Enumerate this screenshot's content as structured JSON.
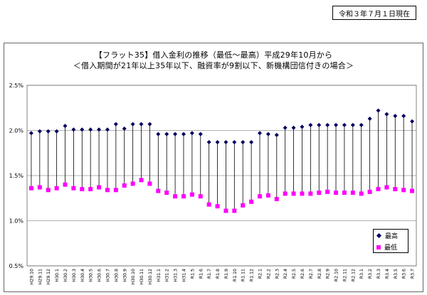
{
  "header": {
    "date_label": "令和３年７月１日現在"
  },
  "chart_data": {
    "type": "line",
    "title": "【フラット35】借入金利の推移（最低～最高）平成29年10月から",
    "subtitle": "＜借入期間が21年以上35年以下、融資率が9割以下、新機構団信付きの場合＞",
    "ylim": [
      0.005,
      0.025
    ],
    "yticks": [
      "0.5%",
      "1.0%",
      "1.5%",
      "2.0%",
      "2.5%"
    ],
    "grid": true,
    "legend_position": "bottom-right",
    "categories": [
      "H29.10",
      "H29.11",
      "H29.12",
      "H30.1",
      "H30.2",
      "H30.3",
      "H30.4",
      "H30.5",
      "H30.6",
      "H30.7",
      "H30.8",
      "H30.9",
      "H30.10",
      "H30.11",
      "H30.12",
      "H31.1",
      "H31.2",
      "H31.3",
      "H31.4",
      "R1.5",
      "R1.6",
      "R1.7",
      "R1.8",
      "R1.9",
      "R1.10",
      "R1.11",
      "R1.12",
      "R2.1",
      "R2.2",
      "R2.3",
      "R2.4",
      "R2.5",
      "R2.6",
      "R2.7",
      "R2.8",
      "R2.9",
      "R2.10",
      "R2.11",
      "R2.12",
      "R3.1",
      "R3.2",
      "R3.3",
      "R3.4",
      "R3.5",
      "R3.6",
      "R3.7"
    ],
    "series": [
      {
        "name": "最高",
        "color": "#000060",
        "values": [
          0.0197,
          0.0199,
          0.0199,
          0.0199,
          0.0205,
          0.0201,
          0.0201,
          0.0201,
          0.0201,
          0.0201,
          0.0207,
          0.0202,
          0.0207,
          0.0207,
          0.0207,
          0.0196,
          0.0196,
          0.0196,
          0.0196,
          0.0197,
          0.0196,
          0.0187,
          0.0187,
          0.0187,
          0.0187,
          0.0187,
          0.0187,
          0.0197,
          0.0196,
          0.0195,
          0.0203,
          0.0203,
          0.0204,
          0.0206,
          0.0206,
          0.0206,
          0.0206,
          0.0206,
          0.0206,
          0.0206,
          0.0213,
          0.0222,
          0.0218,
          0.0216,
          0.0216,
          0.021
        ]
      },
      {
        "name": "最低",
        "color": "#ff00ff",
        "values": [
          0.0136,
          0.0137,
          0.0134,
          0.0136,
          0.014,
          0.0136,
          0.0135,
          0.0135,
          0.0137,
          0.0134,
          0.0134,
          0.0139,
          0.0141,
          0.0145,
          0.0141,
          0.0133,
          0.0131,
          0.0127,
          0.0127,
          0.0129,
          0.0127,
          0.0118,
          0.0116,
          0.0111,
          0.0111,
          0.0117,
          0.0121,
          0.0127,
          0.0128,
          0.0124,
          0.013,
          0.013,
          0.013,
          0.013,
          0.0131,
          0.0132,
          0.0131,
          0.0131,
          0.0131,
          0.013,
          0.0132,
          0.0135,
          0.0137,
          0.0135,
          0.0134,
          0.0133
        ]
      }
    ]
  }
}
